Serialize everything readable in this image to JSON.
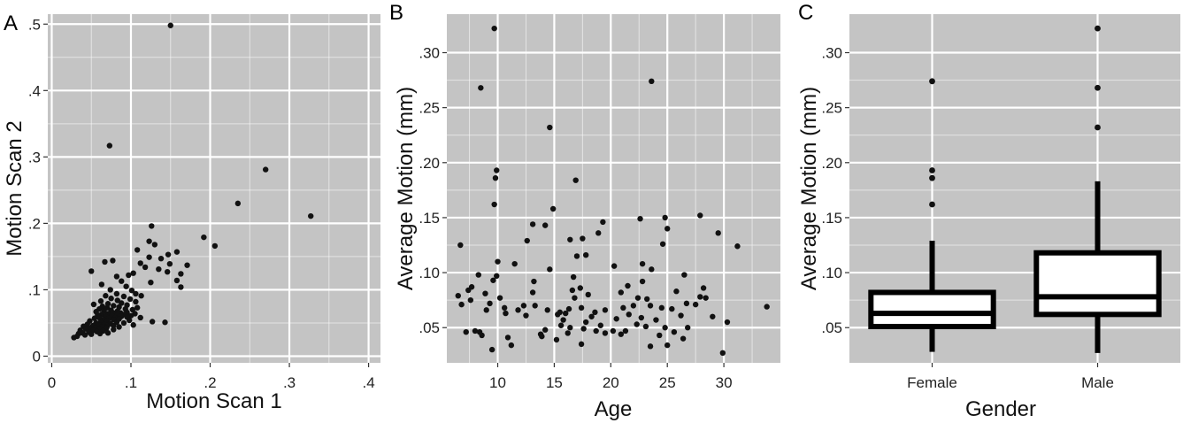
{
  "chart_data": [
    {
      "panel": "A",
      "type": "scatter",
      "xlabel": "Motion Scan 1",
      "ylabel": "Motion Scan 2",
      "xlim": [
        -0.005,
        0.415
      ],
      "ylim": [
        -0.01,
        0.515
      ],
      "x_ticks": [
        "0",
        ".1",
        ".2",
        ".3",
        ".4"
      ],
      "y_ticks": [
        "0",
        ".1",
        ".2",
        ".3",
        ".4",
        ".5"
      ],
      "grid": true,
      "points": [
        [
          0.15,
          0.498
        ],
        [
          0.073,
          0.317
        ],
        [
          0.27,
          0.281
        ],
        [
          0.235,
          0.23
        ],
        [
          0.327,
          0.211
        ],
        [
          0.126,
          0.196
        ],
        [
          0.192,
          0.179
        ],
        [
          0.206,
          0.166
        ],
        [
          0.123,
          0.173
        ],
        [
          0.13,
          0.168
        ],
        [
          0.108,
          0.16
        ],
        [
          0.158,
          0.157
        ],
        [
          0.147,
          0.153
        ],
        [
          0.123,
          0.149
        ],
        [
          0.138,
          0.147
        ],
        [
          0.112,
          0.14
        ],
        [
          0.171,
          0.137
        ],
        [
          0.077,
          0.144
        ],
        [
          0.067,
          0.142
        ],
        [
          0.149,
          0.139
        ],
        [
          0.118,
          0.134
        ],
        [
          0.135,
          0.131
        ],
        [
          0.146,
          0.127
        ],
        [
          0.05,
          0.128
        ],
        [
          0.103,
          0.125
        ],
        [
          0.163,
          0.124
        ],
        [
          0.097,
          0.122
        ],
        [
          0.082,
          0.12
        ],
        [
          0.158,
          0.114
        ],
        [
          0.088,
          0.113
        ],
        [
          0.125,
          0.111
        ],
        [
          0.063,
          0.108
        ],
        [
          0.094,
          0.105
        ],
        [
          0.163,
          0.104
        ],
        [
          0.074,
          0.1
        ],
        [
          0.101,
          0.099
        ],
        [
          0.106,
          0.094
        ],
        [
          0.082,
          0.094
        ],
        [
          0.113,
          0.091
        ],
        [
          0.068,
          0.091
        ],
        [
          0.091,
          0.09
        ],
        [
          0.075,
          0.087
        ],
        [
          0.099,
          0.086
        ],
        [
          0.083,
          0.084
        ],
        [
          0.062,
          0.083
        ],
        [
          0.106,
          0.082
        ],
        [
          0.088,
          0.08
        ],
        [
          0.071,
          0.079
        ],
        [
          0.053,
          0.078
        ],
        [
          0.095,
          0.077
        ],
        [
          0.078,
          0.076
        ],
        [
          0.064,
          0.075
        ],
        [
          0.085,
          0.074
        ],
        [
          0.07,
          0.073
        ],
        [
          0.108,
          0.073
        ],
        [
          0.06,
          0.071
        ],
        [
          0.093,
          0.071
        ],
        [
          0.102,
          0.07
        ],
        [
          0.075,
          0.069
        ],
        [
          0.083,
          0.068
        ],
        [
          0.066,
          0.068
        ],
        [
          0.056,
          0.067
        ],
        [
          0.095,
          0.066
        ],
        [
          0.078,
          0.065
        ],
        [
          0.087,
          0.065
        ],
        [
          0.105,
          0.064
        ],
        [
          0.071,
          0.064
        ],
        [
          0.063,
          0.063
        ],
        [
          0.092,
          0.063
        ],
        [
          0.083,
          0.062
        ],
        [
          0.058,
          0.062
        ],
        [
          0.1,
          0.061
        ],
        [
          0.076,
          0.061
        ],
        [
          0.068,
          0.06
        ],
        [
          0.088,
          0.06
        ],
        [
          0.095,
          0.059
        ],
        [
          0.08,
          0.058
        ],
        [
          0.112,
          0.058
        ],
        [
          0.06,
          0.058
        ],
        [
          0.072,
          0.057
        ],
        [
          0.054,
          0.057
        ],
        [
          0.085,
          0.056
        ],
        [
          0.065,
          0.055
        ],
        [
          0.078,
          0.055
        ],
        [
          0.098,
          0.054
        ],
        [
          0.07,
          0.053
        ],
        [
          0.048,
          0.053
        ],
        [
          0.062,
          0.052
        ],
        [
          0.127,
          0.052
        ],
        [
          0.143,
          0.051
        ],
        [
          0.082,
          0.051
        ],
        [
          0.056,
          0.05
        ],
        [
          0.091,
          0.05
        ],
        [
          0.074,
          0.049
        ],
        [
          0.066,
          0.048
        ],
        [
          0.045,
          0.048
        ],
        [
          0.103,
          0.047
        ],
        [
          0.059,
          0.047
        ],
        [
          0.052,
          0.046
        ],
        [
          0.078,
          0.046
        ],
        [
          0.07,
          0.045
        ],
        [
          0.04,
          0.045
        ],
        [
          0.063,
          0.044
        ],
        [
          0.085,
          0.044
        ],
        [
          0.055,
          0.043
        ],
        [
          0.048,
          0.042
        ],
        [
          0.069,
          0.042
        ],
        [
          0.06,
          0.041
        ],
        [
          0.043,
          0.041
        ],
        [
          0.078,
          0.04
        ],
        [
          0.052,
          0.039
        ],
        [
          0.036,
          0.039
        ],
        [
          0.065,
          0.038
        ],
        [
          0.057,
          0.037
        ],
        [
          0.047,
          0.036
        ],
        [
          0.039,
          0.035
        ],
        [
          0.071,
          0.035
        ],
        [
          0.061,
          0.034
        ],
        [
          0.034,
          0.034
        ],
        [
          0.05,
          0.033
        ],
        [
          0.042,
          0.032
        ],
        [
          0.032,
          0.03
        ],
        [
          0.028,
          0.028
        ]
      ]
    },
    {
      "panel": "B",
      "type": "scatter",
      "xlabel": "Age",
      "ylabel": "Average Motion (mm)",
      "xlim": [
        5.5,
        35
      ],
      "ylim": [
        0.018,
        0.335
      ],
      "x_ticks": [
        "10",
        "15",
        "20",
        "25",
        "30"
      ],
      "y_ticks": [
        ".05",
        ".10",
        ".15",
        ".20",
        ".25",
        ".30"
      ],
      "grid": true,
      "points": [
        [
          9.7,
          0.322
        ],
        [
          23.6,
          0.274
        ],
        [
          8.5,
          0.268
        ],
        [
          14.6,
          0.232
        ],
        [
          9.9,
          0.193
        ],
        [
          9.8,
          0.186
        ],
        [
          16.9,
          0.184
        ],
        [
          9.7,
          0.162
        ],
        [
          14.9,
          0.158
        ],
        [
          24.8,
          0.15
        ],
        [
          27.9,
          0.152
        ],
        [
          22.6,
          0.149
        ],
        [
          19.3,
          0.146
        ],
        [
          13.1,
          0.144
        ],
        [
          14.2,
          0.143
        ],
        [
          18.9,
          0.136
        ],
        [
          29.5,
          0.136
        ],
        [
          25.0,
          0.14
        ],
        [
          17.5,
          0.131
        ],
        [
          16.4,
          0.13
        ],
        [
          31.2,
          0.124
        ],
        [
          6.7,
          0.125
        ],
        [
          12.6,
          0.129
        ],
        [
          24.6,
          0.126
        ],
        [
          17.8,
          0.116
        ],
        [
          17.0,
          0.115
        ],
        [
          22.8,
          0.108
        ],
        [
          10.0,
          0.11
        ],
        [
          20.3,
          0.106
        ],
        [
          23.6,
          0.103
        ],
        [
          14.6,
          0.103
        ],
        [
          11.5,
          0.108
        ],
        [
          26.5,
          0.098
        ],
        [
          8.3,
          0.098
        ],
        [
          16.7,
          0.096
        ],
        [
          9.9,
          0.097
        ],
        [
          28.2,
          0.086
        ],
        [
          9.6,
          0.093
        ],
        [
          7.7,
          0.087
        ],
        [
          7.4,
          0.084
        ],
        [
          13.2,
          0.092
        ],
        [
          21.5,
          0.088
        ],
        [
          22.8,
          0.092
        ],
        [
          16.6,
          0.084
        ],
        [
          17.3,
          0.086
        ],
        [
          18.0,
          0.08
        ],
        [
          6.5,
          0.079
        ],
        [
          27.9,
          0.078
        ],
        [
          10.2,
          0.077
        ],
        [
          16.8,
          0.077
        ],
        [
          23.2,
          0.076
        ],
        [
          25.8,
          0.083
        ],
        [
          13.1,
          0.082
        ],
        [
          8.9,
          0.081
        ],
        [
          20.9,
          0.082
        ],
        [
          6.8,
          0.071
        ],
        [
          7.6,
          0.075
        ],
        [
          9.3,
          0.072
        ],
        [
          10.6,
          0.068
        ],
        [
          11.8,
          0.066
        ],
        [
          12.3,
          0.07
        ],
        [
          13.3,
          0.07
        ],
        [
          14.4,
          0.066
        ],
        [
          15.5,
          0.064
        ],
        [
          16.3,
          0.067
        ],
        [
          17.4,
          0.068
        ],
        [
          18.6,
          0.064
        ],
        [
          19.5,
          0.066
        ],
        [
          21.1,
          0.068
        ],
        [
          22.0,
          0.07
        ],
        [
          22.4,
          0.077
        ],
        [
          23.5,
          0.07
        ],
        [
          24.5,
          0.068
        ],
        [
          25.4,
          0.067
        ],
        [
          26.7,
          0.072
        ],
        [
          27.5,
          0.071
        ],
        [
          28.4,
          0.077
        ],
        [
          30.3,
          0.055
        ],
        [
          33.8,
          0.069
        ],
        [
          9.0,
          0.066
        ],
        [
          10.7,
          0.063
        ],
        [
          12.5,
          0.061
        ],
        [
          15.3,
          0.062
        ],
        [
          16.0,
          0.063
        ],
        [
          18.3,
          0.06
        ],
        [
          20.5,
          0.058
        ],
        [
          21.6,
          0.062
        ],
        [
          22.7,
          0.059
        ],
        [
          24.0,
          0.057
        ],
        [
          26.2,
          0.061
        ],
        [
          29.0,
          0.06
        ],
        [
          15.8,
          0.057
        ],
        [
          17.8,
          0.055
        ],
        [
          19.1,
          0.052
        ],
        [
          22.3,
          0.053
        ],
        [
          7.2,
          0.046
        ],
        [
          8.0,
          0.047
        ],
        [
          8.4,
          0.046
        ],
        [
          13.8,
          0.044
        ],
        [
          14.2,
          0.048
        ],
        [
          15.6,
          0.052
        ],
        [
          16.4,
          0.05
        ],
        [
          17.6,
          0.049
        ],
        [
          18.7,
          0.047
        ],
        [
          20.2,
          0.047
        ],
        [
          21.3,
          0.047
        ],
        [
          23.1,
          0.051
        ],
        [
          24.8,
          0.05
        ],
        [
          25.6,
          0.046
        ],
        [
          26.8,
          0.05
        ],
        [
          8.6,
          0.043
        ],
        [
          10.9,
          0.041
        ],
        [
          13.9,
          0.042
        ],
        [
          16.2,
          0.045
        ],
        [
          19.5,
          0.045
        ],
        [
          20.9,
          0.044
        ],
        [
          24.3,
          0.043
        ],
        [
          26.4,
          0.04
        ],
        [
          11.2,
          0.034
        ],
        [
          15.2,
          0.039
        ],
        [
          17.4,
          0.035
        ],
        [
          23.5,
          0.033
        ],
        [
          25.0,
          0.034
        ],
        [
          9.5,
          0.03
        ],
        [
          29.9,
          0.027
        ]
      ]
    },
    {
      "panel": "C",
      "type": "box",
      "xlabel": "Gender",
      "ylabel": "Average Motion (mm)",
      "ylim": [
        0.018,
        0.335
      ],
      "y_ticks": [
        ".05",
        ".10",
        ".15",
        ".20",
        ".25",
        ".30"
      ],
      "grid": true,
      "categories": [
        "Female",
        "Male"
      ],
      "boxes": [
        {
          "name": "Female",
          "whisker_low": 0.028,
          "q1": 0.051,
          "median": 0.063,
          "q3": 0.082,
          "whisker_high": 0.129,
          "outliers": [
            0.162,
            0.186,
            0.193,
            0.274
          ]
        },
        {
          "name": "Male",
          "whisker_low": 0.027,
          "q1": 0.062,
          "median": 0.078,
          "q3": 0.118,
          "whisker_high": 0.183,
          "outliers": [
            0.232,
            0.268,
            0.322
          ]
        }
      ]
    }
  ]
}
